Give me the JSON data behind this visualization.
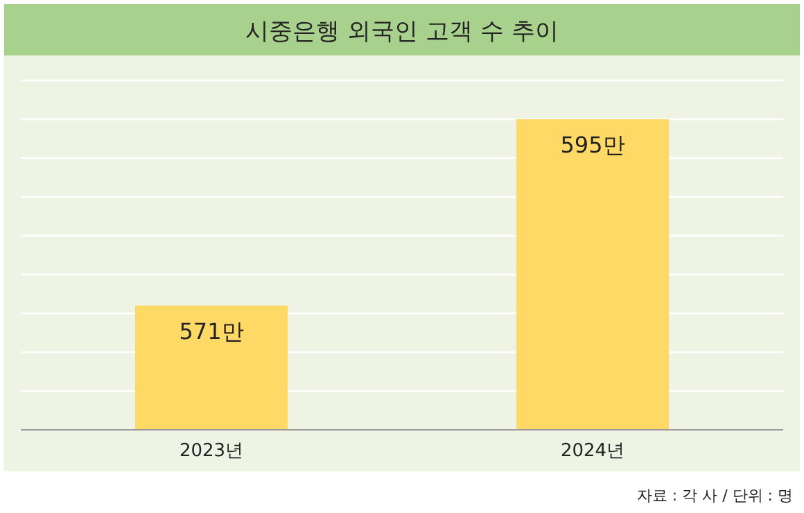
{
  "chart_data": {
    "type": "bar",
    "title": "시중은행 외국인 고객 수 추이",
    "categories": [
      "2023년",
      "2024년"
    ],
    "values": [
      571,
      595
    ],
    "value_labels": [
      "571만",
      "595만"
    ],
    "color": "#ffd966",
    "ylim": [
      555,
      600
    ],
    "yticks": [
      {
        "value": 555,
        "label": null
      },
      {
        "value": 560,
        "label": null
      },
      {
        "value": 565,
        "label": null
      },
      {
        "value": 570,
        "label": null
      },
      {
        "value": 575,
        "label": null
      },
      {
        "value": 580,
        "label": null
      },
      {
        "value": 585,
        "label": null
      },
      {
        "value": 590,
        "label": null
      },
      {
        "value": 595,
        "label": null
      },
      {
        "value": 600,
        "label": null
      }
    ],
    "grid": "y",
    "tick_labels": "x",
    "annotations": [
      "자료 : 각 사 / 단위 : 명"
    ]
  }
}
